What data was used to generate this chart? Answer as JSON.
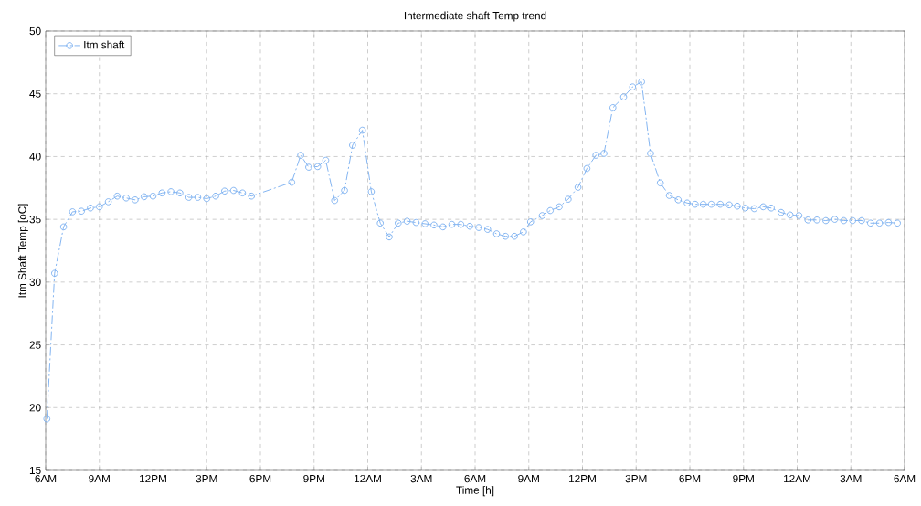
{
  "chart_data": {
    "type": "line",
    "title": "Intermediate shaft Temp trend",
    "xlabel": "Time [h]",
    "ylabel": "Itm Shaft Temp [oC]",
    "xlim": [
      "--01-01T06:00",
      "--01-03T06:00"
    ],
    "ylim": [
      15,
      50
    ],
    "xticks": [
      {
        "value": "--01-01T06:00",
        "label": "6AM"
      },
      {
        "value": "--01-01T09:00",
        "label": "9AM"
      },
      {
        "value": "--01-01T12:00",
        "label": "12PM"
      },
      {
        "value": "--01-01T15:00",
        "label": "3PM"
      },
      {
        "value": "--01-01T18:00",
        "label": "6PM"
      },
      {
        "value": "--01-01T21:00",
        "label": "9PM"
      },
      {
        "value": "--01-02T00:00",
        "label": "12AM"
      },
      {
        "value": "--01-02T03:00",
        "label": "3AM"
      },
      {
        "value": "--01-02T06:00",
        "label": "6AM"
      },
      {
        "value": "--01-02T09:00",
        "label": "9AM"
      },
      {
        "value": "--01-02T12:00",
        "label": "12PM"
      },
      {
        "value": "--01-02T15:00",
        "label": "3PM"
      },
      {
        "value": "--01-02T18:00",
        "label": "6PM"
      },
      {
        "value": "--01-02T21:00",
        "label": "9PM"
      },
      {
        "value": "--01-03T00:00",
        "label": "12AM"
      },
      {
        "value": "--01-03T03:00",
        "label": "3AM"
      },
      {
        "value": "--01-03T06:00",
        "label": "6AM"
      }
    ],
    "yticks": [
      15,
      20,
      25,
      30,
      35,
      40,
      45,
      50
    ],
    "grid": true,
    "legend": "top left",
    "marker": "circle",
    "line_style": "dashed",
    "series": [
      {
        "name": "Itm shaft",
        "color": "#7fb2f0",
        "x": [
          "--01-01T06:04",
          "--01-01T06:30",
          "--01-01T07:00",
          "--01-01T07:30",
          "--01-01T08:00",
          "--01-01T08:30",
          "--01-01T09:00",
          "--01-01T09:30",
          "--01-01T10:00",
          "--01-01T10:30",
          "--01-01T11:00",
          "--01-01T11:30",
          "--01-01T12:00",
          "--01-01T12:30",
          "--01-01T13:00",
          "--01-01T13:30",
          "--01-01T14:00",
          "--01-01T14:30",
          "--01-01T15:00",
          "--01-01T15:30",
          "--01-01T16:00",
          "--01-01T16:30",
          "--01-01T17:00",
          "--01-01T17:30",
          "--01-01T19:45",
          "--01-01T20:15",
          "--01-01T20:42",
          "--01-01T21:12",
          "--01-01T21:39",
          "--01-01T22:09",
          "--01-01T22:42",
          "--01-01T23:09",
          "--01-01T23:42",
          "--01-02T00:12",
          "--01-02T00:42",
          "--01-02T01:12",
          "--01-02T01:42",
          "--01-02T02:12",
          "--01-02T02:42",
          "--01-02T03:12",
          "--01-02T03:42",
          "--01-02T04:12",
          "--01-02T04:42",
          "--01-02T05:12",
          "--01-02T05:42",
          "--01-02T06:12",
          "--01-02T06:42",
          "--01-02T07:12",
          "--01-02T07:42",
          "--01-02T08:12",
          "--01-02T08:42",
          "--01-02T09:06",
          "--01-02T09:45",
          "--01-02T10:12",
          "--01-02T10:42",
          "--01-02T11:12",
          "--01-02T11:45",
          "--01-02T12:15",
          "--01-02T12:45",
          "--01-02T13:12",
          "--01-02T13:42",
          "--01-02T14:18",
          "--01-02T14:48",
          "--01-02T15:18",
          "--01-02T15:48",
          "--01-02T16:21",
          "--01-02T16:51",
          "--01-02T17:21",
          "--01-02T17:51",
          "--01-02T18:18",
          "--01-02T18:45",
          "--01-02T19:12",
          "--01-02T19:42",
          "--01-02T20:12",
          "--01-02T20:39",
          "--01-02T21:06",
          "--01-02T21:36",
          "--01-02T22:06",
          "--01-02T22:33",
          "--01-02T23:06",
          "--01-02T23:36",
          "--01-03T00:06",
          "--01-03T00:36",
          "--01-03T01:06",
          "--01-03T01:36",
          "--01-03T02:06",
          "--01-03T02:36",
          "--01-03T03:06",
          "--01-03T03:36",
          "--01-03T04:06",
          "--01-03T04:36",
          "--01-03T05:06",
          "--01-03T05:36"
        ],
        "values": [
          19.1,
          30.7,
          34.4,
          35.6,
          35.65,
          35.9,
          36.0,
          36.4,
          36.85,
          36.7,
          36.55,
          36.8,
          36.85,
          37.1,
          37.2,
          37.1,
          36.75,
          36.75,
          36.65,
          36.85,
          37.25,
          37.3,
          37.1,
          36.85,
          37.95,
          40.1,
          39.15,
          39.2,
          39.7,
          36.5,
          37.3,
          40.9,
          42.1,
          37.2,
          34.7,
          33.6,
          34.7,
          34.85,
          34.75,
          34.65,
          34.55,
          34.4,
          34.6,
          34.6,
          34.45,
          34.35,
          34.2,
          33.85,
          33.65,
          33.65,
          34.0,
          34.8,
          35.3,
          35.7,
          36.0,
          36.6,
          37.55,
          39.05,
          40.1,
          40.25,
          43.9,
          44.75,
          45.55,
          45.95,
          40.25,
          37.9,
          36.9,
          36.55,
          36.3,
          36.2,
          36.2,
          36.2,
          36.2,
          36.15,
          36.05,
          35.9,
          35.85,
          36.0,
          35.9,
          35.55,
          35.35,
          35.3,
          34.95,
          34.95,
          34.9,
          35.0,
          34.9,
          34.9,
          34.9,
          34.7,
          34.7,
          34.75,
          34.7
        ]
      }
    ]
  }
}
